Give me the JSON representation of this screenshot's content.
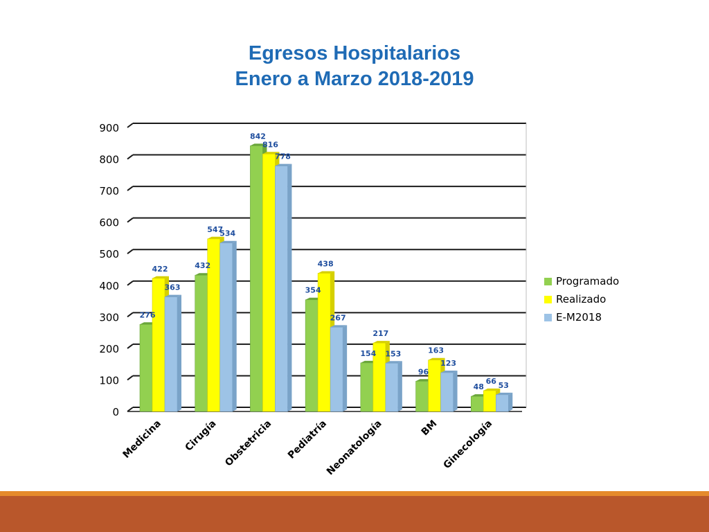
{
  "title": {
    "line1": "Egresos Hospitalarios",
    "line2": "Enero a Marzo 2018-2019"
  },
  "colors": {
    "programado": "#92d050",
    "realizado": "#ffff00",
    "em2018": "#9dc3e6",
    "title": "#1f6bb5",
    "data_label": "#1f4e9e",
    "footer_line": "#e58a2b",
    "footer_band": "#b9572b"
  },
  "chart_data": {
    "type": "bar",
    "title": "Egresos Hospitalarios Enero a Marzo 2018-2019",
    "categories": [
      "Medicina",
      "Cirugía",
      "Obstetricia",
      "Pediatría",
      "Neonatología",
      "BM",
      "Ginecología"
    ],
    "series": [
      {
        "name": "Programado",
        "values": [
          276,
          432,
          842,
          354,
          154,
          96,
          48
        ]
      },
      {
        "name": "Realizado",
        "values": [
          422,
          547,
          816,
          438,
          217,
          163,
          66
        ]
      },
      {
        "name": "E-M2018",
        "values": [
          363,
          534,
          778,
          267,
          153,
          123,
          53
        ]
      }
    ],
    "ylim": [
      0,
      900
    ],
    "yticks": [
      0,
      100,
      200,
      300,
      400,
      500,
      600,
      700,
      800,
      900
    ],
    "grid": true,
    "legend_position": "right",
    "style": "3d-clustered-columns"
  },
  "legend": {
    "items": [
      "Programado",
      "Realizado",
      "E-M2018"
    ]
  }
}
